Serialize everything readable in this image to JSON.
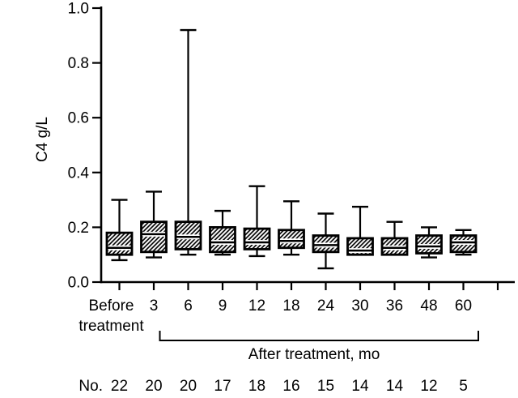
{
  "figure": {
    "background": "#ffffff",
    "ink_color": "#000000"
  },
  "chart_data": {
    "type": "box",
    "title": "",
    "ylabel": "C4 g/L",
    "ylim": [
      0.0,
      1.0
    ],
    "y_ticks": [
      "0.0",
      "0.2",
      "0.4",
      "0.6",
      "0.8",
      "1.0"
    ],
    "grid": false,
    "box_fill_style": "diagonal-hatch",
    "x_bracket_label": "After treatment, mo",
    "counts_row_label": "No.",
    "groups": [
      {
        "label": "Before treatment",
        "label_lines": [
          "Before",
          "treatment"
        ],
        "n": 22,
        "whisker_low": 0.08,
        "q1": 0.1,
        "median": 0.125,
        "q3": 0.18,
        "whisker_high": 0.3
      },
      {
        "label": "3",
        "n": 20,
        "whisker_low": 0.09,
        "q1": 0.11,
        "median": 0.175,
        "q3": 0.22,
        "whisker_high": 0.33
      },
      {
        "label": "6",
        "n": 20,
        "whisker_low": 0.1,
        "q1": 0.12,
        "median": 0.165,
        "q3": 0.22,
        "whisker_high": 0.92
      },
      {
        "label": "9",
        "n": 17,
        "whisker_low": 0.1,
        "q1": 0.11,
        "median": 0.145,
        "q3": 0.2,
        "whisker_high": 0.26
      },
      {
        "label": "12",
        "n": 18,
        "whisker_low": 0.095,
        "q1": 0.12,
        "median": 0.145,
        "q3": 0.195,
        "whisker_high": 0.35
      },
      {
        "label": "18",
        "n": 16,
        "whisker_low": 0.1,
        "q1": 0.125,
        "median": 0.15,
        "q3": 0.19,
        "whisker_high": 0.295
      },
      {
        "label": "24",
        "n": 15,
        "whisker_low": 0.05,
        "q1": 0.11,
        "median": 0.135,
        "q3": 0.17,
        "whisker_high": 0.25
      },
      {
        "label": "30",
        "n": 14,
        "whisker_low": 0.1,
        "q1": 0.1,
        "median": 0.115,
        "q3": 0.16,
        "whisker_high": 0.275
      },
      {
        "label": "36",
        "n": 14,
        "whisker_low": 0.1,
        "q1": 0.1,
        "median": 0.125,
        "q3": 0.16,
        "whisker_high": 0.22
      },
      {
        "label": "48",
        "n": 12,
        "whisker_low": 0.09,
        "q1": 0.105,
        "median": 0.13,
        "q3": 0.17,
        "whisker_high": 0.2
      },
      {
        "label": "60",
        "n": 5,
        "whisker_low": 0.1,
        "q1": 0.11,
        "median": 0.145,
        "q3": 0.17,
        "whisker_high": 0.19
      }
    ]
  }
}
